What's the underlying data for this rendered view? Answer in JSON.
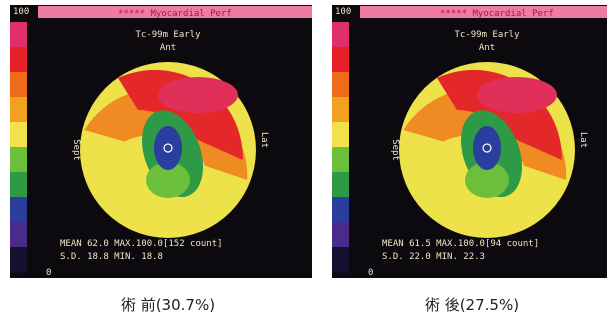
{
  "panels": [
    {
      "scale_max": "100",
      "header": "***** Myocardial Perf",
      "title": "Tc-99m Early",
      "anterior": "Ant",
      "septal": "Sept",
      "lateral": "Lat",
      "stats_line1": "MEAN 62.0 MAX.100.0[152 count]",
      "stats_line2": "S.D. 18.8 MIN. 18.8",
      "scale_min": "0",
      "caption": "術 前(30.7%)"
    },
    {
      "scale_max": "100",
      "header": "***** Myocardial Perf",
      "title": "Tc-99m Early",
      "anterior": "Ant",
      "septal": "Sept",
      "lateral": "Lat",
      "stats_line1": "MEAN 61.5 MAX.100.0[94 count]",
      "stats_line2": "S.D. 22.0 MIN. 22.3",
      "scale_min": "0",
      "caption": "術 後(27.5%)"
    }
  ]
}
